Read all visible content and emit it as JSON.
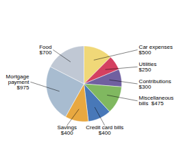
{
  "chart_data": {
    "type": "pie",
    "categories": [
      "Car expenses\n$500",
      "Utilities\n$250",
      "Contributions\n$300",
      "Miscellaneous\nbills  $475",
      "Credit card bills\n$400",
      "Savings\n$400",
      "Mortgage\npayment\n$975",
      "Food\n$700"
    ],
    "values": [
      500,
      250,
      300,
      475,
      400,
      400,
      975,
      700
    ],
    "colors": [
      "#f0d878",
      "#d44060",
      "#7060a0",
      "#80b860",
      "#4878b8",
      "#e8a840",
      "#a8bcd0",
      "#c0c8d4"
    ]
  }
}
